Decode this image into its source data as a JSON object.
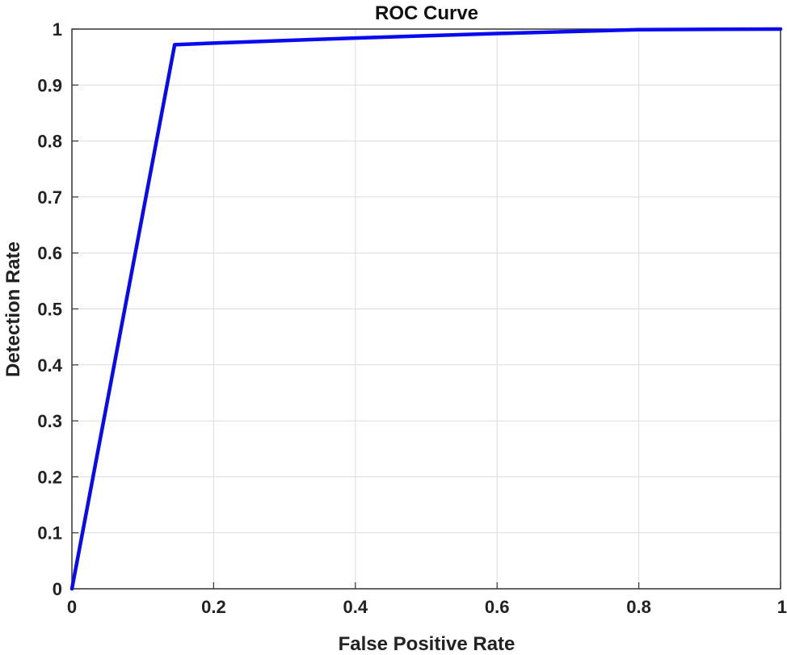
{
  "chart_data": {
    "type": "line",
    "title": "ROC Curve",
    "xlabel": "False Positive Rate",
    "ylabel": "Detection Rate",
    "xlim": [
      0,
      1
    ],
    "ylim": [
      0,
      1
    ],
    "xticks": [
      "0",
      "0.2",
      "0.4",
      "0.6",
      "0.8",
      "1"
    ],
    "yticks": [
      "0",
      "0.1",
      "0.2",
      "0.3",
      "0.4",
      "0.5",
      "0.6",
      "0.7",
      "0.8",
      "0.9",
      "1"
    ],
    "grid": true,
    "legend": "none",
    "series": [
      {
        "color": "#0a0af0",
        "x": [
          0,
          0.145,
          0.2,
          0.4,
          0.6,
          0.8,
          1.0
        ],
        "y": [
          0,
          0.972,
          0.975,
          0.984,
          0.992,
          0.999,
          1.0
        ]
      }
    ]
  }
}
